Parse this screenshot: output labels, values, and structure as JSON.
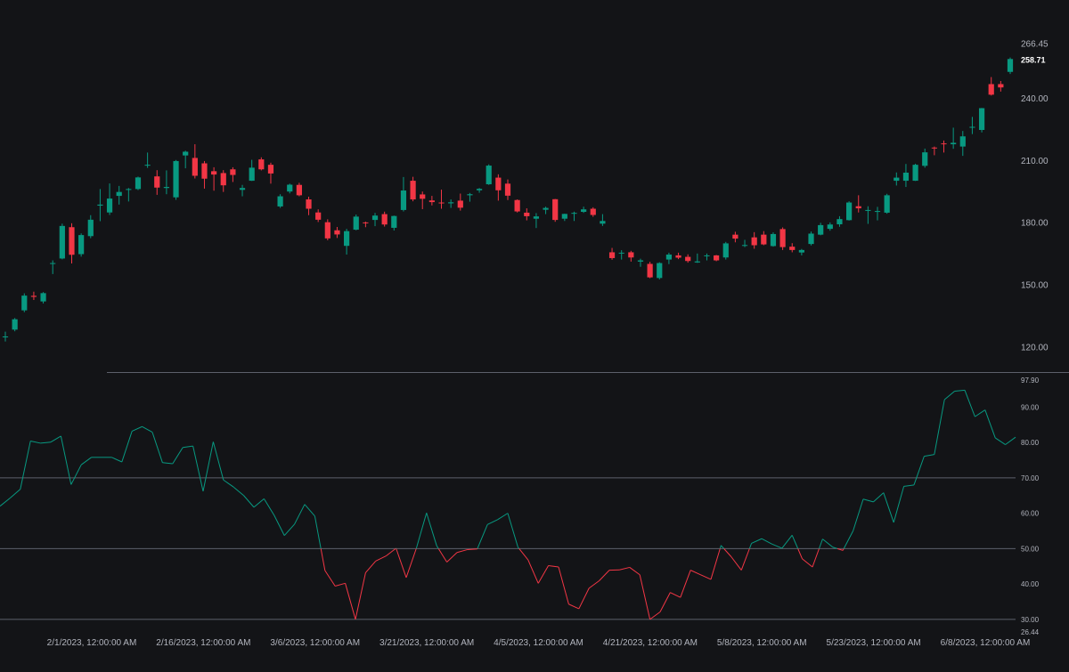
{
  "colors": {
    "background": "#131417",
    "up": "#089981",
    "down": "#f23645",
    "axis_text": "#b2b5be",
    "guide_line": "#5d606b",
    "last_price_text": "#ffffff"
  },
  "chart_data": [
    {
      "type": "candlestick",
      "title": "",
      "xlabel": "",
      "ylabel": "",
      "ylim": [
        108.6,
        273.0
      ],
      "last_price_label": "258.71",
      "y_ticks": [
        "266.45",
        "240.00",
        "210.00",
        "180.00",
        "150.00",
        "120.00"
      ],
      "x_ticks": [
        "2/1/2023, 12:00:00 AM",
        "2/16/2023, 12:00:00 AM",
        "3/6/2023, 12:00:00 AM",
        "3/21/2023, 12:00:00 AM",
        "4/5/2023, 12:00:00 AM",
        "4/21/2023, 12:00:00 AM",
        "5/8/2023, 12:00:00 AM",
        "5/23/2023, 12:00:00 AM",
        "6/8/2023, 12:00:00 AM"
      ],
      "ohlc": [
        [
          124.8,
          127.2,
          122.5,
          124.9
        ],
        [
          128.2,
          133.8,
          127.4,
          133.2
        ],
        [
          137.5,
          145.7,
          136.6,
          144.6
        ],
        [
          144.5,
          146.5,
          142.5,
          144.0
        ],
        [
          141.8,
          146.3,
          140.8,
          145.8
        ],
        [
          160.0,
          161.6,
          155.0,
          160.3
        ],
        [
          162.5,
          179.3,
          162.1,
          178.2
        ],
        [
          177.6,
          179.5,
          160.1,
          164.3
        ],
        [
          164.6,
          174.6,
          163.4,
          173.8
        ],
        [
          173.3,
          183.4,
          172.3,
          181.2
        ],
        [
          188.0,
          196.0,
          180.5,
          188.5
        ],
        [
          184.7,
          198.7,
          183.5,
          191.4
        ],
        [
          192.7,
          197.5,
          188.5,
          194.6
        ],
        [
          196.0,
          196.5,
          190.0,
          196.0
        ],
        [
          196.0,
          202.0,
          195.5,
          201.6
        ],
        [
          207.5,
          213.6,
          206.2,
          207.7
        ],
        [
          202.1,
          205.1,
          193.2,
          196.7
        ],
        [
          196.5,
          205.0,
          193.5,
          197.0
        ],
        [
          192.0,
          210.0,
          190.8,
          209.5
        ],
        [
          212.2,
          214.5,
          206.0,
          214.0
        ],
        [
          211.0,
          217.6,
          201.1,
          202.4
        ],
        [
          208.4,
          209.5,
          196.2,
          201.0
        ],
        [
          204.6,
          206.5,
          195.2,
          203.0
        ],
        [
          203.7,
          205.1,
          194.6,
          197.8
        ],
        [
          205.5,
          206.5,
          199.4,
          202.8
        ],
        [
          195.6,
          198.0,
          192.5,
          196.5
        ],
        [
          200.0,
          210.1,
          199.9,
          206.3
        ],
        [
          210.3,
          211.3,
          205.0,
          205.5
        ],
        [
          207.7,
          208.7,
          198.6,
          203.5
        ],
        [
          187.6,
          193.5,
          186.9,
          192.5
        ],
        [
          194.8,
          198.6,
          193.9,
          198.1
        ],
        [
          198.0,
          199.0,
          192.5,
          193.0
        ],
        [
          191.0,
          192.3,
          183.4,
          186.5
        ],
        [
          184.7,
          186.2,
          180.1,
          181.2
        ],
        [
          180.0,
          181.4,
          171.3,
          172.2
        ],
        [
          176.1,
          177.7,
          172.4,
          174.1
        ],
        [
          168.6,
          176.8,
          164.4,
          175.7
        ],
        [
          176.4,
          183.7,
          176.1,
          182.7
        ],
        [
          179.9,
          180.3,
          177.6,
          179.5
        ],
        [
          181.1,
          184.5,
          178.1,
          183.2
        ],
        [
          183.9,
          185.1,
          177.9,
          178.9
        ],
        [
          177.3,
          183.2,
          176.0,
          183.0
        ],
        [
          185.9,
          201.8,
          185.2,
          195.3
        ],
        [
          200.0,
          201.9,
          190.1,
          191.0
        ],
        [
          193.4,
          194.8,
          186.3,
          191.3
        ],
        [
          190.5,
          192.7,
          188.1,
          189.7
        ],
        [
          189.5,
          195.7,
          186.5,
          189.4
        ],
        [
          189.1,
          191.0,
          186.9,
          189.6
        ],
        [
          190.4,
          193.8,
          185.6,
          187.0
        ],
        [
          193.0,
          194.1,
          189.9,
          193.5
        ],
        [
          195.4,
          196.5,
          194.2,
          196.1
        ],
        [
          198.3,
          207.9,
          198.0,
          207.3
        ],
        [
          201.5,
          203.1,
          190.4,
          195.4
        ],
        [
          198.6,
          200.6,
          190.7,
          192.8
        ],
        [
          190.7,
          191.0,
          184.7,
          185.2
        ],
        [
          184.6,
          186.7,
          180.9,
          182.9
        ],
        [
          181.7,
          184.4,
          177.2,
          182.8
        ],
        [
          186.0,
          187.5,
          183.9,
          186.9
        ],
        [
          191.1,
          191.2,
          180.2,
          181.1
        ],
        [
          181.7,
          184.1,
          180.6,
          184.0
        ],
        [
          184.2,
          185.1,
          180.6,
          184.5
        ],
        [
          185.0,
          187.5,
          184.5,
          186.2
        ],
        [
          186.5,
          187.2,
          182.6,
          183.5
        ],
        [
          179.3,
          183.9,
          178.2,
          180.6
        ],
        [
          165.5,
          167.6,
          161.9,
          162.7
        ],
        [
          165.0,
          166.5,
          162.0,
          165.3
        ],
        [
          165.5,
          166.2,
          161.0,
          163.0
        ],
        [
          161.0,
          162.4,
          158.5,
          161.6
        ],
        [
          159.9,
          160.9,
          153.0,
          153.4
        ],
        [
          153.1,
          160.7,
          152.4,
          160.3
        ],
        [
          162.0,
          165.3,
          159.8,
          164.4
        ],
        [
          164.0,
          165.3,
          162.2,
          162.9
        ],
        [
          163.3,
          164.5,
          160.5,
          161.3
        ],
        [
          160.6,
          164.9,
          160.4,
          161.1
        ],
        [
          163.7,
          164.9,
          161.6,
          164.0
        ],
        [
          164.0,
          164.2,
          161.2,
          161.6
        ],
        [
          163.0,
          170.5,
          162.0,
          169.8
        ],
        [
          174.0,
          175.4,
          170.3,
          172.1
        ],
        [
          168.7,
          171.5,
          168.0,
          169.0
        ],
        [
          172.7,
          175.2,
          167.2,
          168.9
        ],
        [
          174.0,
          175.7,
          168.9,
          169.3
        ],
        [
          168.5,
          175.1,
          168.2,
          174.3
        ],
        [
          176.7,
          177.5,
          166.6,
          168.0
        ],
        [
          168.2,
          169.9,
          165.5,
          166.6
        ],
        [
          165.4,
          167.1,
          164.0,
          166.6
        ],
        [
          169.5,
          175.5,
          168.8,
          174.5
        ],
        [
          174.0,
          179.7,
          173.7,
          178.6
        ],
        [
          176.8,
          179.9,
          175.9,
          178.9
        ],
        [
          179.0,
          182.9,
          177.8,
          181.5
        ],
        [
          181.0,
          190.1,
          180.8,
          189.5
        ],
        [
          187.7,
          193.0,
          184.7,
          186.7
        ],
        [
          185.7,
          187.7,
          179.2,
          185.9
        ],
        [
          185.0,
          187.4,
          180.9,
          185.4
        ],
        [
          184.6,
          193.7,
          184.1,
          193.0
        ],
        [
          200.0,
          204.0,
          197.7,
          201.5
        ],
        [
          200.0,
          208.1,
          197.0,
          203.9
        ],
        [
          200.0,
          208.2,
          199.9,
          207.7
        ],
        [
          207.2,
          215.5,
          206.3,
          213.7
        ],
        [
          216.0,
          216.5,
          212.3,
          215.6
        ],
        [
          218.0,
          219.4,
          213.6,
          217.6
        ],
        [
          217.6,
          225.6,
          215.4,
          218.3
        ],
        [
          216.5,
          224.0,
          212.0,
          221.4
        ],
        [
          225.6,
          230.8,
          222.5,
          226.0
        ],
        [
          224.5,
          235.1,
          223.3,
          235.0
        ],
        [
          246.6,
          250.0,
          241.1,
          241.5
        ],
        [
          246.6,
          248.1,
          243.0,
          245.0
        ],
        [
          252.5,
          259.4,
          251.5,
          258.7
        ]
      ]
    },
    {
      "type": "line",
      "title": "",
      "xlabel": "",
      "ylabel": "",
      "ylim": [
        26.44,
        97.9
      ],
      "y_ticks": [
        "97.90",
        "90.00",
        "80.00",
        "70.00",
        "60.00",
        "50.00",
        "40.00",
        "30.00",
        "26.44"
      ],
      "guide_levels": [
        70,
        50,
        30
      ],
      "threshold": 50,
      "series": [
        {
          "values": [
            62.0,
            64.3,
            66.8,
            80.4,
            79.8,
            80.1,
            81.8,
            68.1,
            73.7,
            75.8,
            75.8,
            75.8,
            74.5,
            83.2,
            84.5,
            82.9,
            74.3,
            74.0,
            78.6,
            79.0,
            66.2,
            80.2,
            69.4,
            67.4,
            65.0,
            61.7,
            64.1,
            59.4,
            53.7,
            56.9,
            62.5,
            59.2,
            43.8,
            39.4,
            40.2,
            30.0,
            43.2,
            46.5,
            47.9,
            50.1,
            41.8,
            50.1,
            60.1,
            50.8,
            46.2,
            48.9,
            49.7,
            49.9,
            56.8,
            58.2,
            60.0,
            50.4,
            46.8,
            40.2,
            45.2,
            44.8,
            34.3,
            33.0,
            38.8,
            40.9,
            43.9,
            44.0,
            44.7,
            42.6,
            30.0,
            32.1,
            37.6,
            36.2,
            43.9,
            42.6,
            41.3,
            50.9,
            47.7,
            43.9,
            51.5,
            52.8,
            51.3,
            50.1,
            53.8,
            47.1,
            44.8,
            52.7,
            50.4,
            49.5,
            55.0,
            64.0,
            63.2,
            65.8,
            57.4,
            67.6,
            68.0,
            76.1,
            76.6,
            92.1,
            94.5,
            94.8,
            87.3,
            89.2,
            81.3,
            79.4,
            81.5
          ]
        }
      ]
    }
  ]
}
